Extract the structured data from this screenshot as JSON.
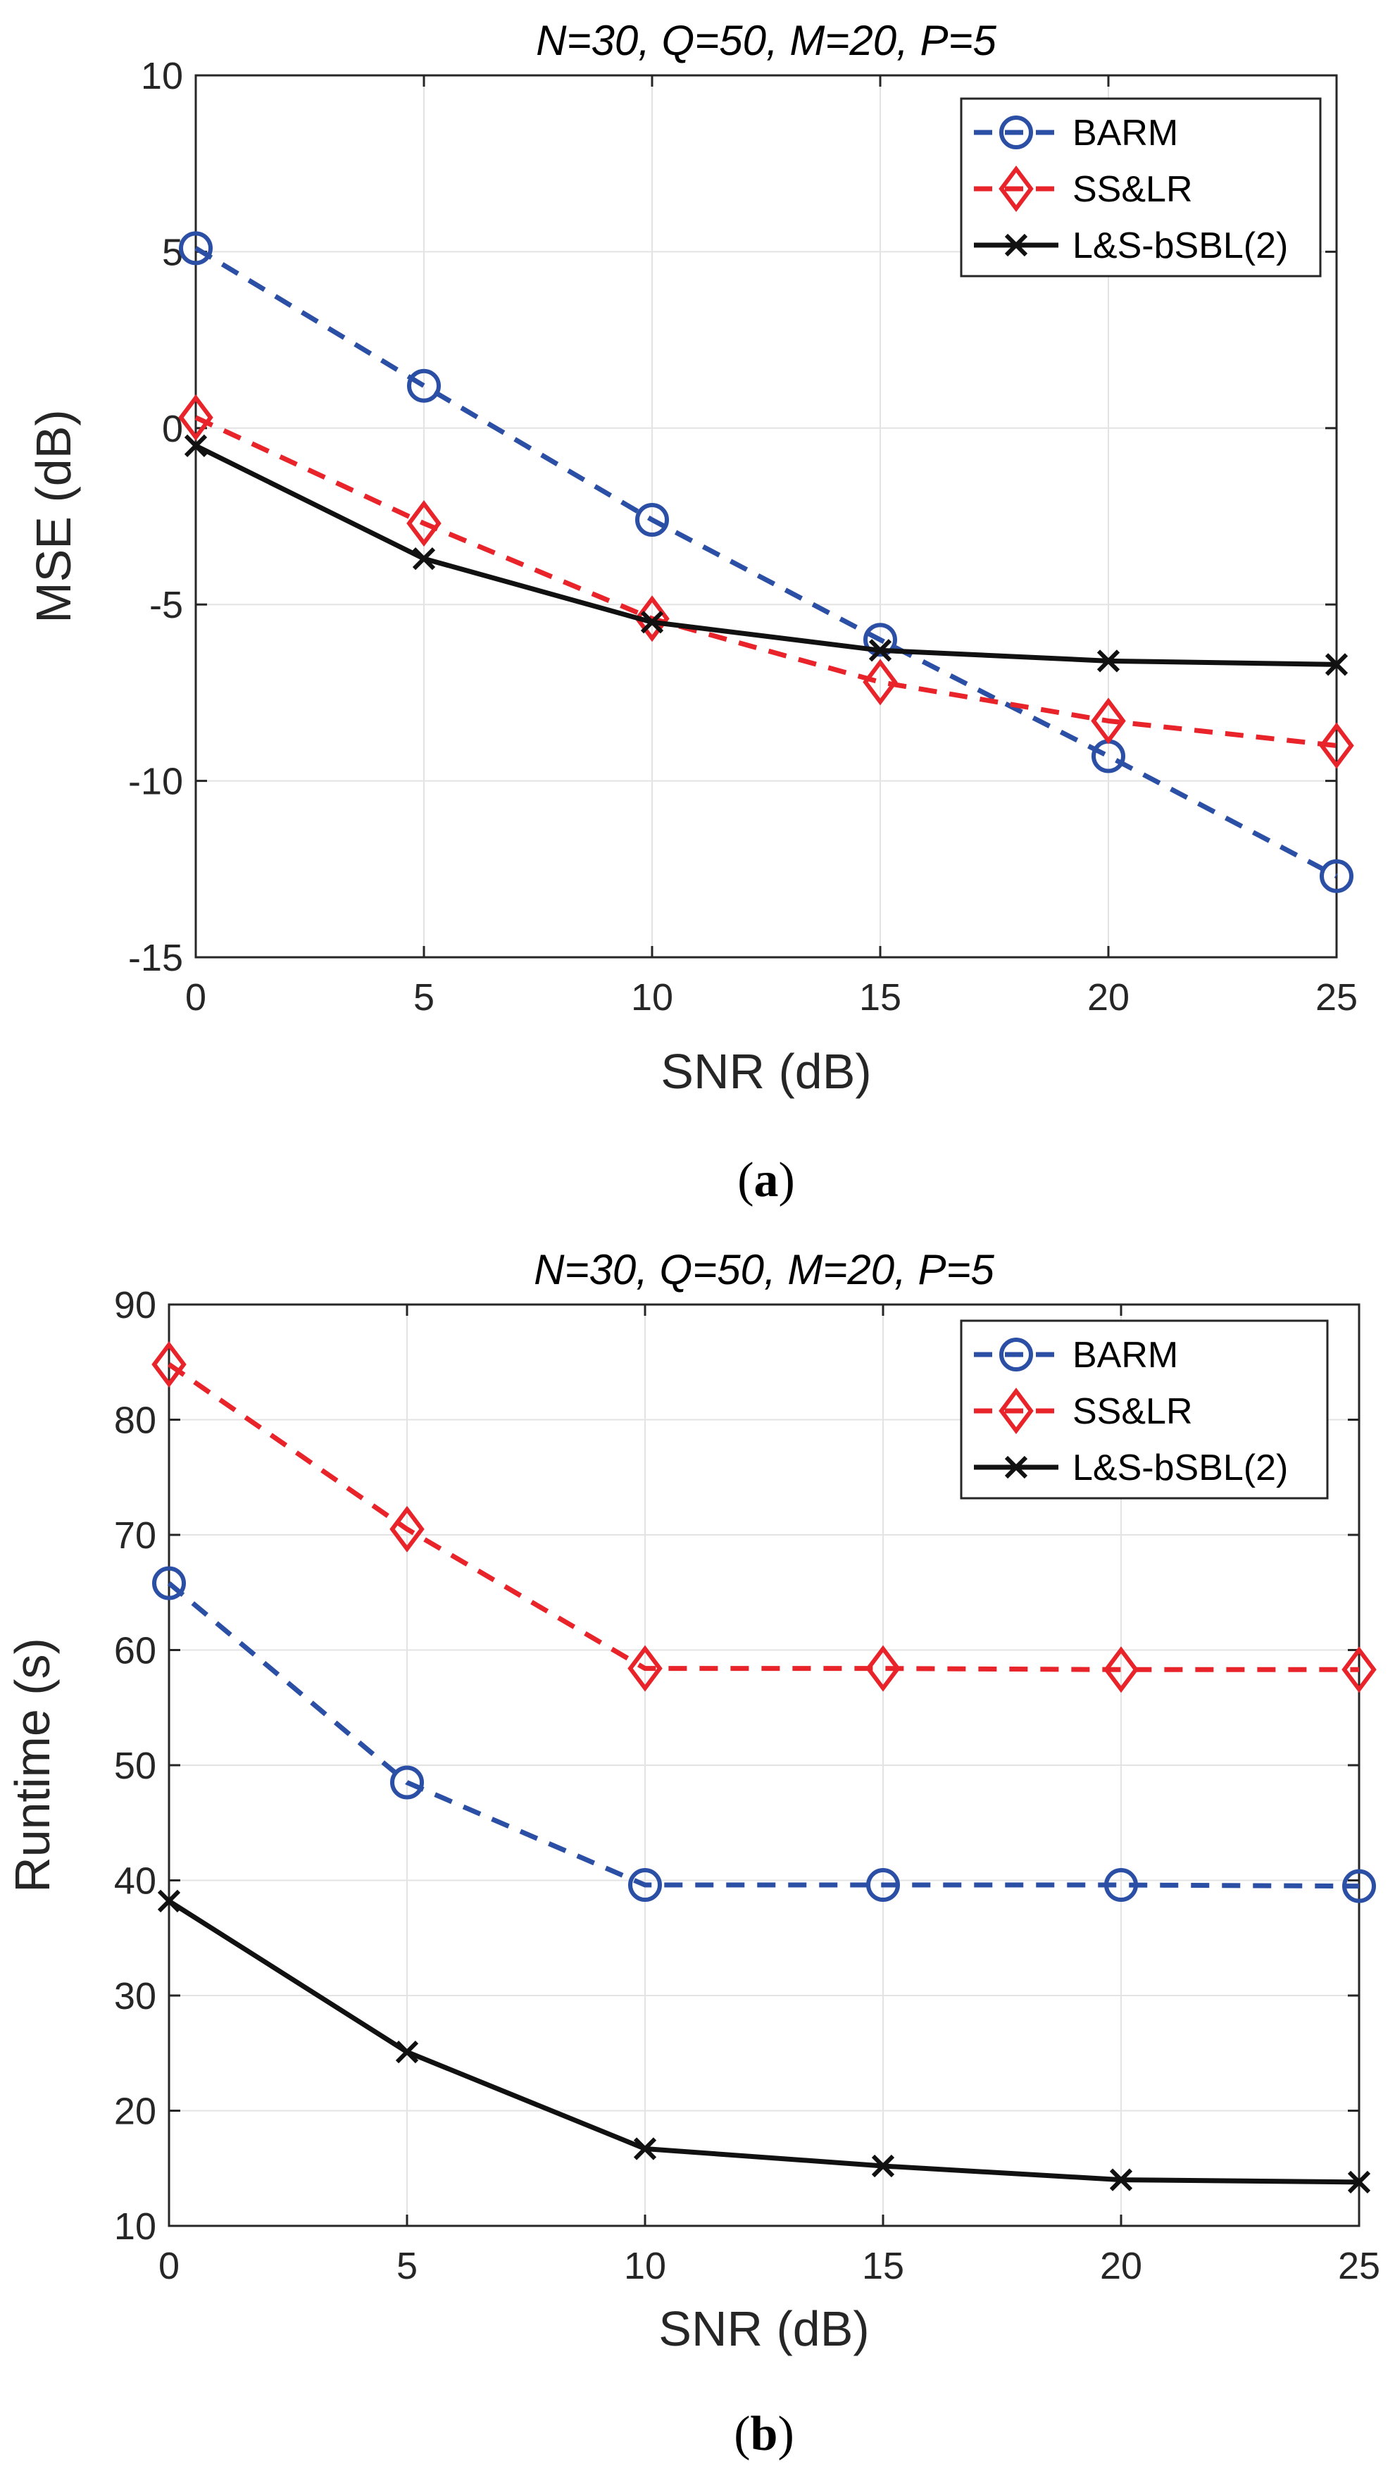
{
  "chart_data": [
    {
      "type": "line",
      "panel_label": "(a)",
      "title": "N=30, Q=50, M=20, P=5",
      "xlabel": "SNR (dB)",
      "ylabel": "MSE (dB)",
      "x": [
        0,
        5,
        10,
        15,
        20,
        25
      ],
      "xlim": [
        0,
        25
      ],
      "ylim": [
        -15,
        10
      ],
      "xticks": [
        "0",
        "5",
        "10",
        "15",
        "20",
        "25"
      ],
      "yticks": [
        "-15",
        "-10",
        "-5",
        "0",
        "5",
        "10"
      ],
      "grid": true,
      "legend_position": "top-right",
      "series": [
        {
          "name": "BARM",
          "color": "#2b4fa5",
          "marker": "circle",
          "dash": "dashed",
          "values": [
            5.1,
            1.2,
            -2.6,
            -6.0,
            -9.3,
            -12.7
          ]
        },
        {
          "name": "SS&LR",
          "color": "#e8232a",
          "marker": "diamond",
          "dash": "dashed",
          "values": [
            0.3,
            -2.7,
            -5.4,
            -7.2,
            -8.3,
            -9.0
          ]
        },
        {
          "name": "L&S-bSBL(2)",
          "color": "#111111",
          "marker": "x",
          "dash": "solid",
          "values": [
            -0.5,
            -3.7,
            -5.5,
            -6.3,
            -6.6,
            -6.7
          ]
        }
      ]
    },
    {
      "type": "line",
      "panel_label": "(b)",
      "title": "N=30, Q=50, M=20, P=5",
      "xlabel": "SNR (dB)",
      "ylabel": "Runtime (s)",
      "x": [
        0,
        5,
        10,
        15,
        20,
        25
      ],
      "xlim": [
        0,
        25
      ],
      "ylim": [
        10,
        90
      ],
      "xticks": [
        "0",
        "5",
        "10",
        "15",
        "20",
        "25"
      ],
      "yticks": [
        "10",
        "20",
        "30",
        "40",
        "50",
        "60",
        "70",
        "80",
        "90"
      ],
      "grid": true,
      "legend_position": "top-right",
      "series": [
        {
          "name": "BARM",
          "color": "#2b4fa5",
          "marker": "circle",
          "dash": "dashed",
          "values": [
            65.8,
            48.5,
            39.6,
            39.6,
            39.6,
            39.5
          ]
        },
        {
          "name": "SS&LR",
          "color": "#e8232a",
          "marker": "diamond",
          "dash": "dashed",
          "values": [
            84.8,
            70.5,
            58.4,
            58.4,
            58.3,
            58.3
          ]
        },
        {
          "name": "L&S-bSBL(2)",
          "color": "#111111",
          "marker": "x",
          "dash": "solid",
          "values": [
            38.2,
            25.1,
            16.7,
            15.2,
            14.0,
            13.8
          ]
        }
      ]
    }
  ]
}
